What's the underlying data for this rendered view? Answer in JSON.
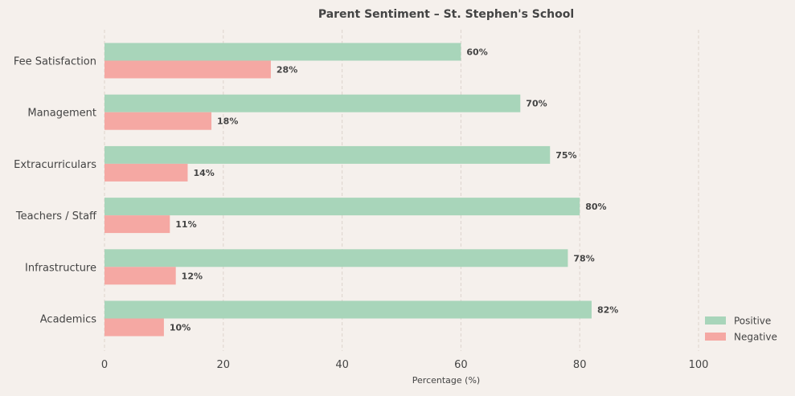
{
  "chart_data": {
    "type": "bar",
    "orientation": "horizontal",
    "title": "Parent Sentiment – St. Stephen's School",
    "xlabel": "Percentage (%)",
    "ylabel": "",
    "xlim": [
      0,
      115
    ],
    "xticks": [
      0,
      20,
      40,
      60,
      80,
      100
    ],
    "grid": "vertical dashed",
    "legend_position": "lower-right",
    "categories": [
      "Fee Satisfaction",
      "Management",
      "Extracurriculars",
      "Teachers / Staff",
      "Infrastructure",
      "Academics"
    ],
    "series": [
      {
        "name": "Positive",
        "color": "#a8d5ba",
        "values": [
          60,
          70,
          75,
          80,
          78,
          82
        ]
      },
      {
        "name": "Negative",
        "color": "#f5a8a3",
        "values": [
          28,
          18,
          14,
          11,
          12,
          10
        ]
      }
    ],
    "value_label_suffix": "%"
  }
}
